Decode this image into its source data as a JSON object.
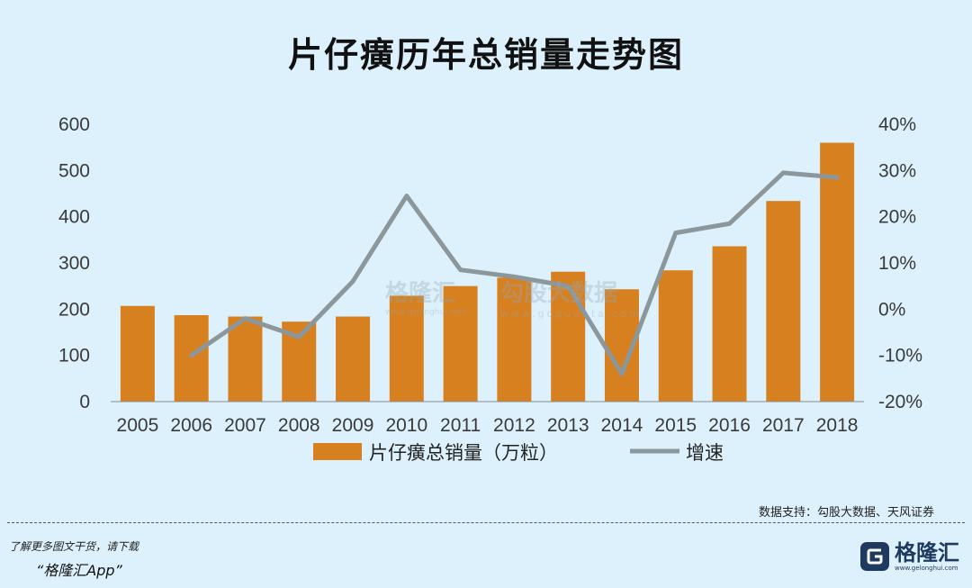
{
  "chart_data": {
    "type": "bar",
    "title": "片仔癀历年总销量走势图",
    "categories": [
      "2005",
      "2006",
      "2007",
      "2008",
      "2009",
      "2010",
      "2011",
      "2012",
      "2013",
      "2014",
      "2015",
      "2016",
      "2017",
      "2018"
    ],
    "series": [
      {
        "name": "片仔癀总销量（万粒）",
        "type": "bar",
        "axis": "left",
        "color": "#d68020",
        "values": [
          207,
          187,
          184,
          173,
          184,
          229,
          250,
          268,
          281,
          243,
          284,
          336,
          434,
          560
        ]
      },
      {
        "name": "增速",
        "type": "line",
        "axis": "right",
        "color": "#8c979c",
        "values": [
          null,
          -10,
          -2,
          -6,
          6,
          24.5,
          8.5,
          7,
          5,
          -14,
          16.5,
          18.5,
          29.5,
          28.5
        ]
      }
    ],
    "ylim_left": [
      0,
      600
    ],
    "yticks_left": [
      "0",
      "100",
      "200",
      "300",
      "400",
      "500",
      "600"
    ],
    "ylim_right": [
      -20,
      40
    ],
    "yticks_right": [
      "-20%",
      "-10%",
      "0%",
      "10%",
      "20%",
      "30%",
      "40%"
    ],
    "grid": false,
    "legend_position": "bottom"
  },
  "source_note": "数据支持：勾股大数据、天风证券",
  "promo": {
    "line1": "了解更多图文干货，请下载",
    "line2": "“格隆汇App”"
  },
  "footer_logo": {
    "name": "格隆汇",
    "url": "www.gelonghui.com"
  },
  "watermarks": {
    "glh_name": "格隆汇",
    "glh_url": "www.gelonghui.com",
    "gogu_name": "勾股大数据",
    "gogu_url": "www.gogudata.com"
  }
}
